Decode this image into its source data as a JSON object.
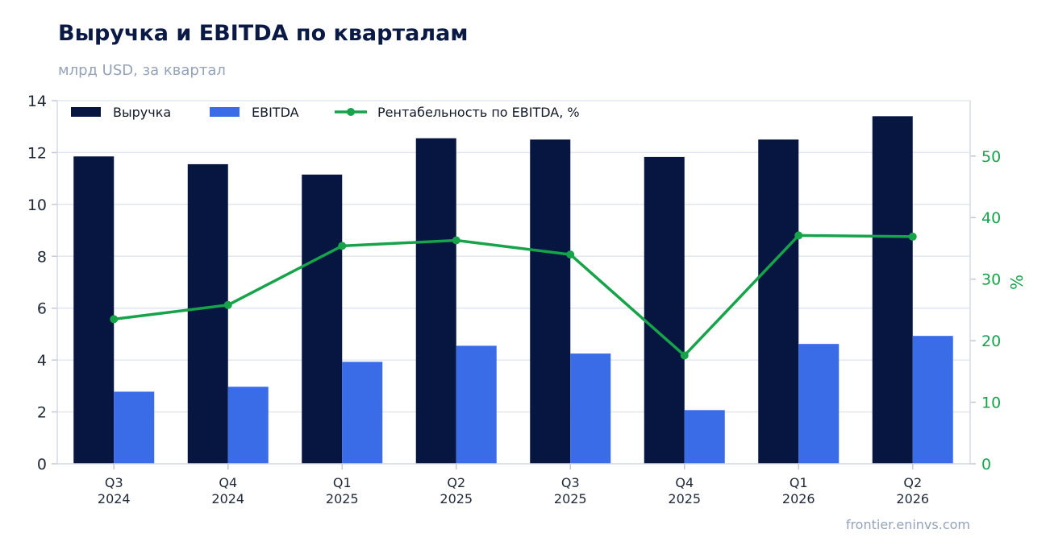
{
  "title": "Выручка и EBITDA по кварталам",
  "subtitle": "млрд USD, за квартал",
  "source": "frontier.eninvs.com",
  "colors": {
    "revenue": "#061640",
    "ebitda": "#3a6ce8",
    "margin": "#16a34a",
    "grid": "#e3e6f0",
    "axis_left": "#1f2937",
    "axis_right": "#16a34a"
  },
  "chart_data": {
    "type": "bar",
    "categories": [
      [
        "Q3",
        "2024"
      ],
      [
        "Q4",
        "2024"
      ],
      [
        "Q1",
        "2025"
      ],
      [
        "Q2",
        "2025"
      ],
      [
        "Q3",
        "2025"
      ],
      [
        "Q4",
        "2025"
      ],
      [
        "Q1",
        "2026"
      ],
      [
        "Q2",
        "2026"
      ]
    ],
    "series": [
      {
        "name": "Выручка",
        "type": "bar",
        "axis": "left",
        "values": [
          11.85,
          11.55,
          11.15,
          12.55,
          12.5,
          11.83,
          12.5,
          13.4
        ]
      },
      {
        "name": "EBITDA",
        "type": "bar",
        "axis": "left",
        "values": [
          2.78,
          2.97,
          3.93,
          4.55,
          4.25,
          2.07,
          4.62,
          4.93
        ]
      },
      {
        "name": "Рентабельность по EBITDA, %",
        "type": "line",
        "axis": "right",
        "values": [
          23.5,
          25.8,
          35.4,
          36.3,
          34.0,
          17.6,
          37.1,
          36.9
        ]
      }
    ],
    "ylim_left": [
      0,
      14
    ],
    "yticks_left": [
      "0",
      "2",
      "4",
      "6",
      "8",
      "10",
      "12",
      "14"
    ],
    "ylim_right": [
      0,
      59
    ],
    "yticks_right": [
      "0",
      "10",
      "20",
      "30",
      "40",
      "50"
    ],
    "ylabel_right": "%",
    "xlabel": "",
    "ylabel": "",
    "grid": true,
    "legend_position": "top-left"
  }
}
